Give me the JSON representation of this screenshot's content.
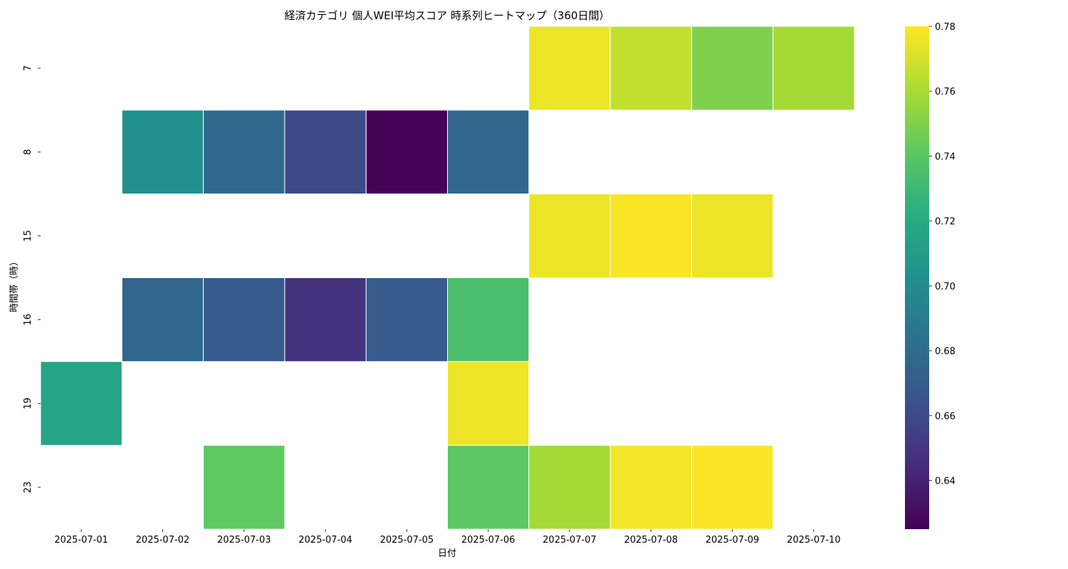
{
  "chart_data": {
    "type": "heatmap",
    "title": "経済カテゴリ 個人WEI平均スコア 時系列ヒートマップ（360日間）",
    "xlabel": "日付",
    "ylabel": "時間帯（時）",
    "x": [
      "2025-07-01",
      "2025-07-02",
      "2025-07-03",
      "2025-07-04",
      "2025-07-05",
      "2025-07-06",
      "2025-07-07",
      "2025-07-08",
      "2025-07-09",
      "2025-07-10"
    ],
    "y": [
      "7",
      "8",
      "15",
      "16",
      "19",
      "23"
    ],
    "values": [
      [
        null,
        null,
        null,
        null,
        null,
        null,
        0.776,
        0.766,
        0.75,
        0.759
      ],
      [
        null,
        0.703,
        0.678,
        0.66,
        0.626,
        0.677,
        null,
        null,
        null,
        null
      ],
      [
        null,
        null,
        null,
        null,
        null,
        null,
        0.776,
        0.779,
        0.776,
        null
      ],
      [
        null,
        0.677,
        0.67,
        0.648,
        0.67,
        0.735,
        null,
        null,
        null,
        null
      ],
      [
        0.716,
        null,
        null,
        null,
        null,
        0.776,
        null,
        null,
        null,
        null
      ],
      [
        null,
        null,
        0.742,
        null,
        null,
        0.741,
        0.759,
        0.778,
        0.779,
        null
      ]
    ],
    "colorbar": {
      "min": 0.625,
      "max": 0.78,
      "ticks": [
        0.64,
        0.66,
        0.68,
        0.7,
        0.72,
        0.74,
        0.76,
        0.78
      ],
      "colormap": "viridis"
    }
  }
}
